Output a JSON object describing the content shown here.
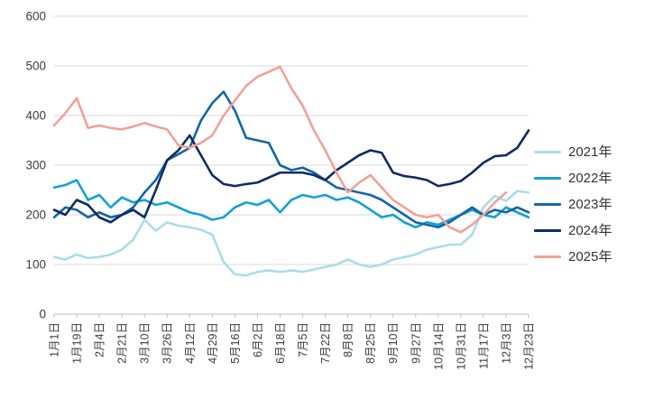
{
  "chart_data": {
    "type": "line",
    "title": "",
    "xlabel": "",
    "ylabel": "",
    "ylim": [
      0,
      600
    ],
    "y_ticks": [
      0,
      100,
      200,
      300,
      400,
      500,
      600
    ],
    "grid": "horizontal",
    "legend_position": "right",
    "x_count": 43,
    "x_tick_indices": [
      0,
      2,
      4,
      6,
      8,
      10,
      12,
      14,
      16,
      18,
      20,
      22,
      24,
      26,
      28,
      30,
      32,
      34,
      36,
      38,
      40,
      42
    ],
    "x_tick_labels": [
      "1月1日",
      "1月19日",
      "2月4日",
      "2月21日",
      "3月10日",
      "3月26日",
      "4月12日",
      "4月29日",
      "5月16日",
      "6月2日",
      "6月18日",
      "7月5日",
      "7月22日",
      "8月8日",
      "8月25日",
      "9月10日",
      "9月27日",
      "10月14日",
      "10月31日",
      "11月17日",
      "12月3日",
      "12月23日"
    ],
    "axis_text_color": "#3b3b3b",
    "gridline_color": "#d9d9d9",
    "axis_line_color": "#bfbfbf",
    "series": [
      {
        "name": "2021年",
        "color": "#a9dcec",
        "values": [
          115,
          110,
          120,
          113,
          115,
          120,
          130,
          150,
          190,
          168,
          185,
          178,
          175,
          170,
          160,
          105,
          80,
          78,
          85,
          88,
          85,
          88,
          85,
          90,
          95,
          100,
          110,
          100,
          95,
          100,
          110,
          115,
          120,
          130,
          135,
          140,
          140,
          160,
          215,
          238,
          228,
          248,
          245
        ]
      },
      {
        "name": "2022年",
        "color": "#16a0d6",
        "values": [
          255,
          260,
          270,
          230,
          240,
          215,
          235,
          225,
          230,
          220,
          225,
          215,
          205,
          200,
          190,
          195,
          215,
          225,
          220,
          230,
          205,
          230,
          240,
          235,
          240,
          230,
          235,
          225,
          210,
          195,
          200,
          185,
          175,
          185,
          180,
          190,
          200,
          210,
          200,
          195,
          215,
          205,
          195
        ]
      },
      {
        "name": "2023年",
        "color": "#1565a5",
        "values": [
          195,
          215,
          210,
          195,
          205,
          195,
          200,
          215,
          245,
          270,
          310,
          322,
          335,
          390,
          425,
          448,
          410,
          355,
          350,
          345,
          300,
          290,
          295,
          285,
          270,
          255,
          250,
          245,
          240,
          230,
          215,
          200,
          185,
          180,
          175,
          185,
          200,
          215,
          200,
          210,
          205,
          215,
          205
        ]
      },
      {
        "name": "2024年",
        "color": "#0f2b63",
        "values": [
          210,
          200,
          230,
          220,
          195,
          185,
          200,
          210,
          195,
          250,
          310,
          330,
          360,
          320,
          280,
          262,
          258,
          262,
          265,
          275,
          285,
          285,
          285,
          280,
          270,
          290,
          305,
          320,
          330,
          325,
          285,
          278,
          275,
          270,
          258,
          262,
          268,
          285,
          305,
          318,
          320,
          335,
          370
        ]
      },
      {
        "name": "2025年",
        "color": "#f2a197",
        "values": [
          380,
          405,
          435,
          375,
          380,
          375,
          372,
          378,
          385,
          378,
          372,
          340,
          335,
          345,
          360,
          400,
          430,
          460,
          478,
          488,
          498,
          455,
          420,
          370,
          330,
          285,
          245,
          265,
          280,
          255,
          230,
          215,
          200,
          195,
          200,
          175,
          165,
          180,
          200,
          225,
          245,
          null,
          null
        ]
      }
    ]
  }
}
